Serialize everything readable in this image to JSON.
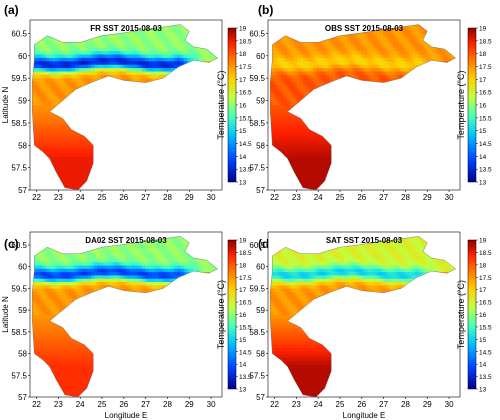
{
  "figure": {
    "panels": [
      {
        "letter": "(a)",
        "title": "FR SST 2015-08-03"
      },
      {
        "letter": "(b)",
        "title": "OBS SST 2015-08-03"
      },
      {
        "letter": "(c)",
        "title": "DA02 SST 2015-08-03"
      },
      {
        "letter": "(d)",
        "title": "SAT SST 2015-08-03"
      }
    ]
  },
  "chart_data": [
    {
      "type": "heatmap",
      "title": "FR SST 2015-08-03",
      "xlabel": "",
      "ylabel": "Latitude N",
      "colorbar_label": "Temperature (°C)",
      "xlim": [
        21.7,
        30.5
      ],
      "ylim": [
        57,
        60.8
      ],
      "xticks": [
        22,
        23,
        24,
        25,
        26,
        27,
        28,
        29,
        30
      ],
      "yticks": [
        57,
        57.5,
        58,
        58.5,
        59,
        59.5,
        60,
        60.5
      ],
      "colorbar_range": [
        13,
        19
      ],
      "colorbar_ticks": [
        13,
        13.5,
        14,
        14.5,
        15,
        15.5,
        16,
        16.5,
        17,
        17.5,
        18,
        18.5,
        19
      ],
      "field_summary": {
        "central_gulf_min": 13.5,
        "northern_coast": 16,
        "southern_coast": 17.5,
        "riga_gulf": 18.5
      }
    },
    {
      "type": "heatmap",
      "title": "OBS SST 2015-08-03",
      "xlabel": "",
      "ylabel": "",
      "colorbar_label": "Temperature (°C)",
      "xlim": [
        21.7,
        30.5
      ],
      "ylim": [
        57,
        60.8
      ],
      "xticks": [
        22,
        23,
        24,
        25,
        26,
        27,
        28,
        29,
        30
      ],
      "yticks": [
        57,
        57.5,
        58,
        58.5,
        59,
        59.5,
        60,
        60.5
      ],
      "colorbar_range": [
        13,
        19
      ],
      "colorbar_ticks": [
        13,
        13.5,
        14,
        14.5,
        15,
        15.5,
        16,
        16.5,
        17,
        17.5,
        18,
        18.5,
        19
      ],
      "field_summary": {
        "central_gulf_min": 17,
        "northern_coast": 17.5,
        "southern_coast": 18,
        "riga_gulf": 18.8
      }
    },
    {
      "type": "heatmap",
      "title": "DA02 SST 2015-08-03",
      "xlabel": "Longitude E",
      "ylabel": "Latitude N",
      "colorbar_label": "Temperature (°C)",
      "xlim": [
        21.7,
        30.5
      ],
      "ylim": [
        57,
        60.8
      ],
      "xticks": [
        22,
        23,
        24,
        25,
        26,
        27,
        28,
        29,
        30
      ],
      "yticks": [
        57,
        57.5,
        58,
        58.5,
        59,
        59.5,
        60,
        60.5
      ],
      "colorbar_range": [
        13,
        19
      ],
      "colorbar_ticks": [
        13,
        13.5,
        14,
        14.5,
        15,
        15.5,
        16,
        16.5,
        17,
        17.5,
        18,
        18.5,
        19
      ],
      "field_summary": {
        "central_gulf_min": 13.8,
        "northern_coast": 16,
        "southern_coast": 17.5,
        "riga_gulf": 18.3
      }
    },
    {
      "type": "heatmap",
      "title": "SAT SST 2015-08-03",
      "xlabel": "Longitude E",
      "ylabel": "",
      "colorbar_label": "Temperature (°C)",
      "xlim": [
        21.7,
        30.5
      ],
      "ylim": [
        57,
        60.8
      ],
      "xticks": [
        22,
        23,
        24,
        25,
        26,
        27,
        28,
        29,
        30
      ],
      "yticks": [
        57,
        57.5,
        58,
        58.5,
        59,
        59.5,
        60,
        60.5
      ],
      "colorbar_range": [
        13,
        19
      ],
      "colorbar_ticks": [
        13,
        13.5,
        14,
        14.5,
        15,
        15.5,
        16,
        16.5,
        17,
        17.5,
        18,
        18.5,
        19
      ],
      "field_summary": {
        "central_gulf_min": 15,
        "northern_coast": 16.5,
        "southern_coast": 17.5,
        "riga_gulf": 18.8
      }
    }
  ]
}
